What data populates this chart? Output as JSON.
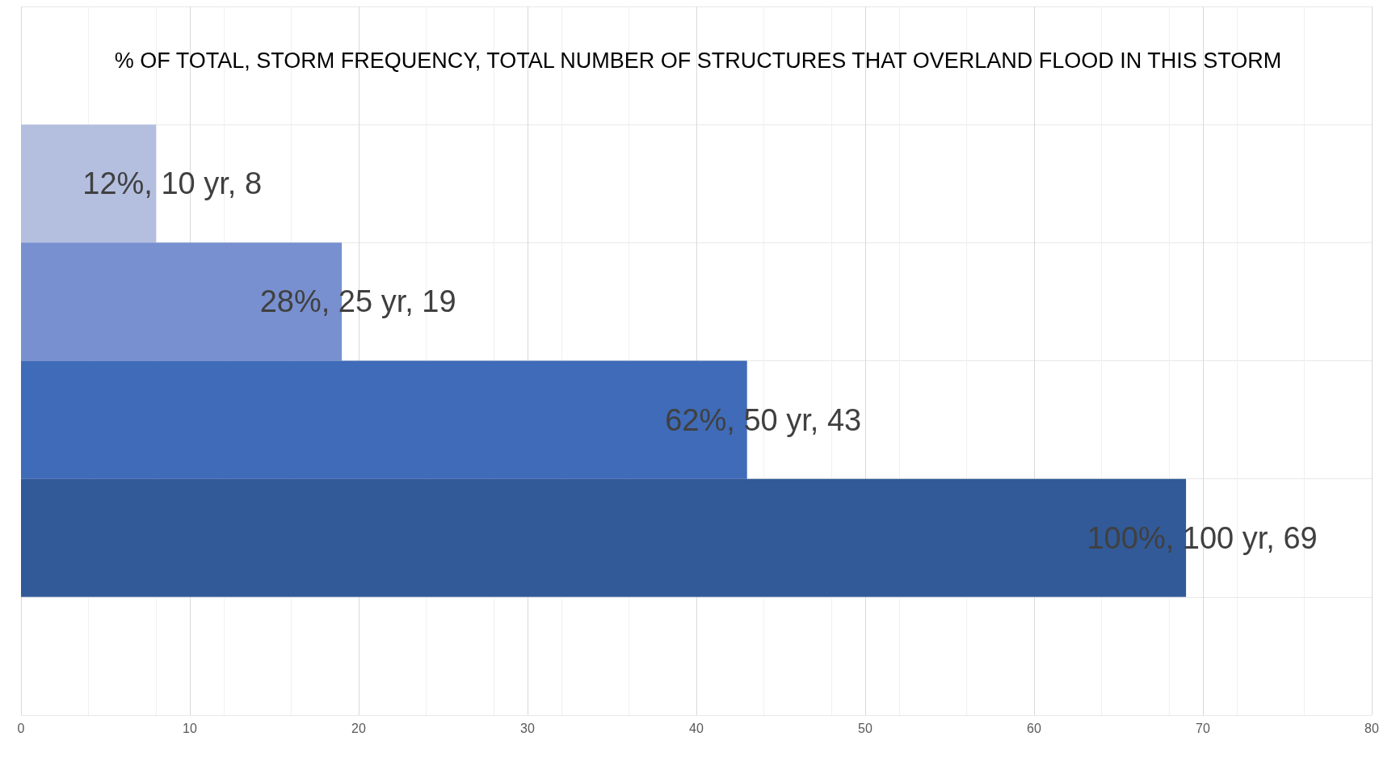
{
  "chart_data": {
    "type": "bar",
    "orientation": "horizontal",
    "title": "% OF TOTAL, STORM FREQUENCY, TOTAL NUMBER OF STRUCTURES THAT OVERLAND FLOOD IN THIS STORM",
    "categories": [
      null,
      null,
      null,
      null,
      null,
      null
    ],
    "values": [
      null,
      8,
      19,
      43,
      69,
      null
    ],
    "colors": [
      "#b4bfe0",
      "#b4bfe0",
      "#7890d0",
      "#3f6bb8",
      "#325a98",
      "#325a98"
    ],
    "value_labels": [
      null,
      "12%, 10 yr, 8",
      "28%, 25 yr, 19",
      "62%, 50 yr, 43",
      "100%, 100 yr, 69",
      null
    ],
    "xlim": [
      0,
      80
    ],
    "xticks": [
      0,
      10,
      20,
      30,
      40,
      50,
      60,
      70,
      80
    ],
    "grid": true
  }
}
